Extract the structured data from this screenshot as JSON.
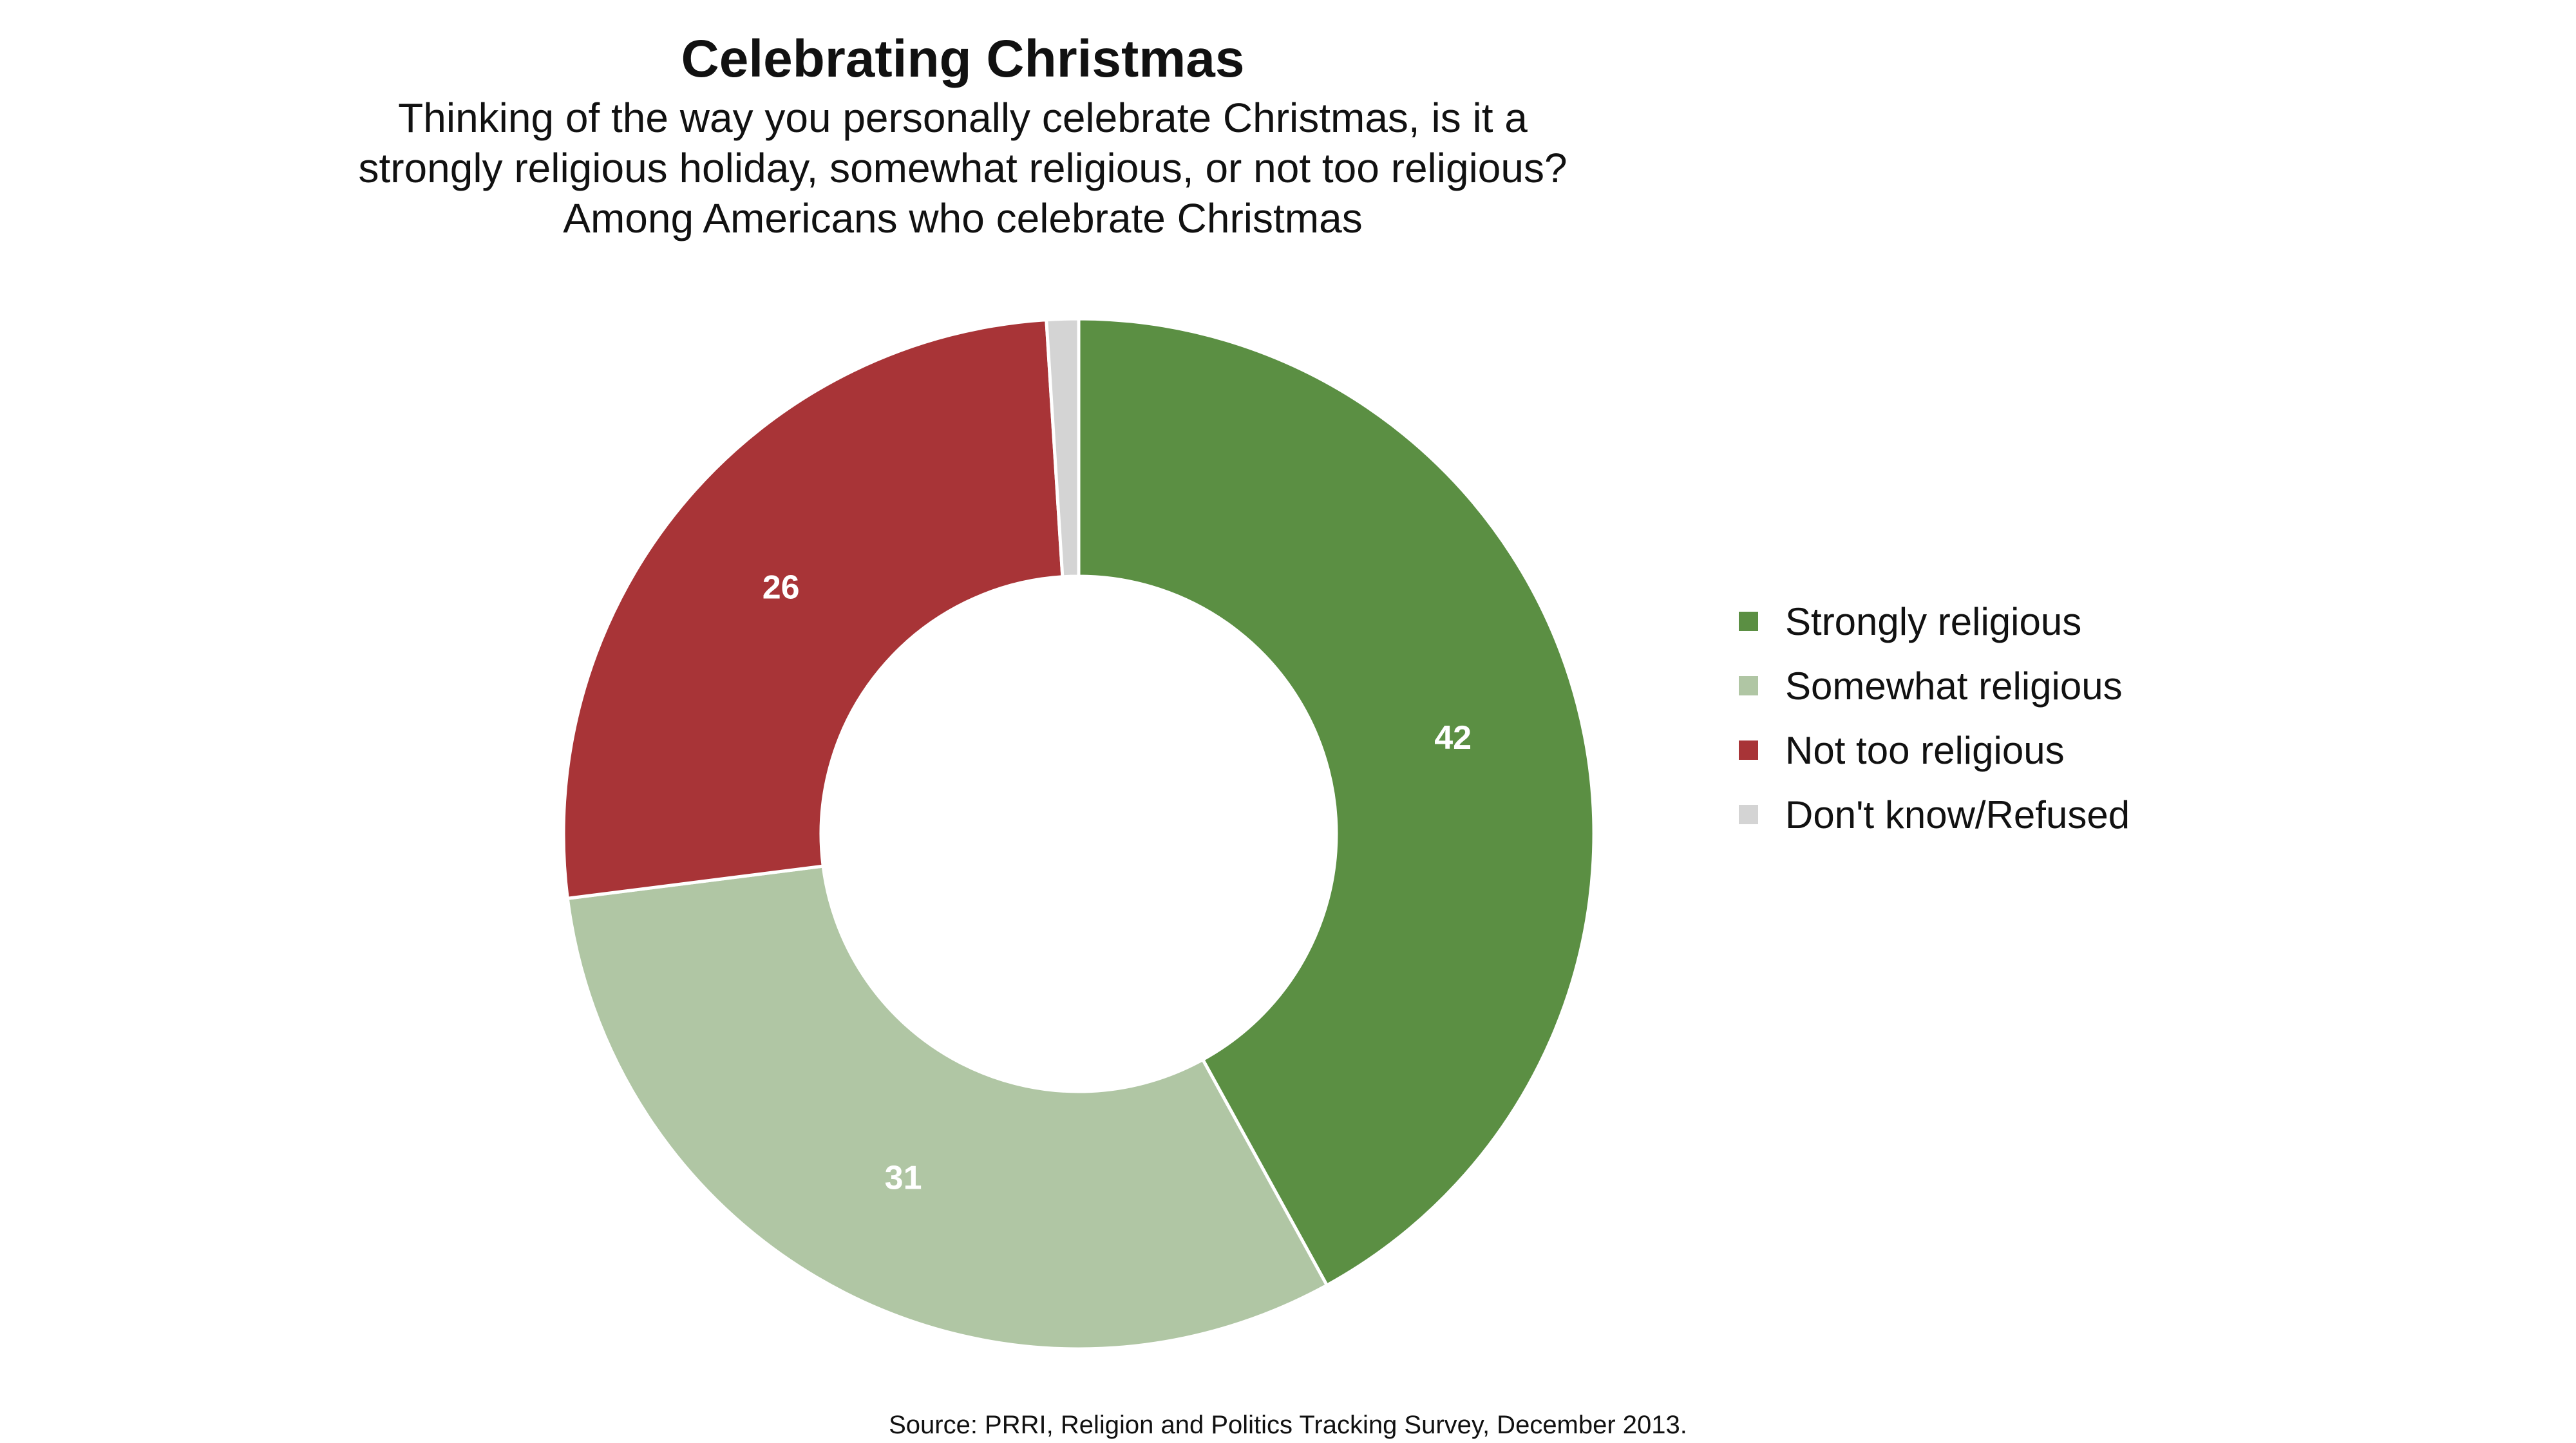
{
  "chart_data": {
    "type": "pie",
    "variant": "donut",
    "title": "Celebrating Christmas",
    "subtitle": [
      "Thinking of the way you personally celebrate Christmas, is it a",
      "strongly religious holiday, somewhat religious, or not too religious?",
      "Among Americans who celebrate Christmas"
    ],
    "categories": [
      "Strongly religious",
      "Somewhat religious",
      "Not too religious",
      "Don't know/Refused"
    ],
    "values": [
      42,
      31,
      26,
      1
    ],
    "data_labels": [
      "42",
      "31",
      "26",
      ""
    ],
    "colors": [
      "#5b8f43",
      "#b0c6a4",
      "#a83437",
      "#d4d4d4"
    ],
    "legend": {
      "position": "right",
      "entries": [
        "Strongly religious",
        "Somewhat religious",
        "Not too religious",
        "Don't know/Refused"
      ]
    },
    "source": "Source: PRRI, Religion and Politics Tracking Survey, December 2013."
  }
}
